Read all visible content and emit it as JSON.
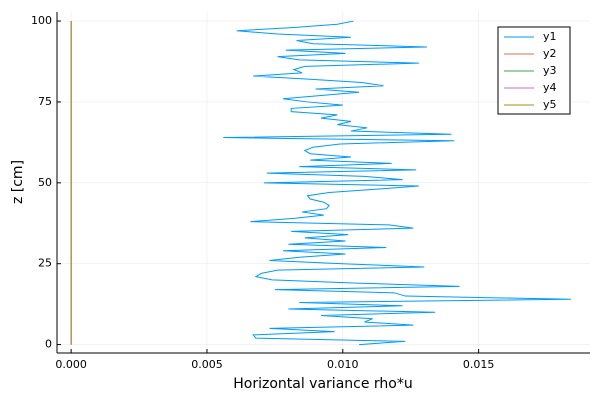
{
  "chart_data": {
    "type": "line",
    "xlabel": "Horizontal variance rho*u",
    "ylabel": "z [cm]",
    "y": [
      0,
      1,
      2,
      3,
      4,
      5,
      6,
      7,
      8,
      9,
      10,
      11,
      12,
      13,
      14,
      15,
      16,
      17,
      18,
      19,
      20,
      21,
      22,
      23,
      24,
      25,
      26,
      27,
      28,
      29,
      30,
      31,
      32,
      33,
      34,
      35,
      36,
      37,
      38,
      39,
      40,
      41,
      42,
      43,
      44,
      45,
      46,
      47,
      48,
      49,
      50,
      51,
      52,
      53,
      54,
      55,
      56,
      57,
      58,
      59,
      60,
      61,
      62,
      63,
      64,
      65,
      66,
      67,
      68,
      69,
      70,
      71,
      72,
      73,
      74,
      75,
      76,
      77,
      78,
      79,
      80,
      81,
      82,
      83,
      84,
      85,
      86,
      87,
      88,
      89,
      90,
      91,
      92,
      93,
      94,
      95,
      96,
      97,
      98,
      99,
      100
    ],
    "series": [
      {
        "name": "y1",
        "color": "#009af9",
        "values": [
          0.0106,
          0.0123,
          0.0068,
          0.0067,
          0.0097,
          0.0073,
          0.0126,
          0.0108,
          0.0111,
          0.0092,
          0.0134,
          0.008,
          0.0122,
          0.0084,
          0.0184,
          0.0123,
          0.0119,
          0.0075,
          0.0143,
          0.0105,
          0.0074,
          0.0068,
          0.007,
          0.0076,
          0.013,
          0.01,
          0.0073,
          0.0084,
          0.0101,
          0.0078,
          0.0116,
          0.008,
          0.0101,
          0.0086,
          0.0102,
          0.0081,
          0.0126,
          0.0117,
          0.0066,
          0.0082,
          0.0093,
          0.0085,
          0.0094,
          0.0095,
          0.0093,
          0.0088,
          0.0087,
          0.0095,
          0.0112,
          0.0128,
          0.0071,
          0.0122,
          0.0108,
          0.0072,
          0.0127,
          0.0084,
          0.0118,
          0.0088,
          0.0103,
          0.0088,
          0.0086,
          0.0089,
          0.0099,
          0.0141,
          0.0056,
          0.014,
          0.0103,
          0.0109,
          0.0098,
          0.0103,
          0.0092,
          0.0098,
          0.0081,
          0.0081,
          0.01,
          0.0087,
          0.0078,
          0.0092,
          0.0106,
          0.009,
          0.0115,
          0.0107,
          0.0088,
          0.0067,
          0.0085,
          0.0082,
          0.0086,
          0.0128,
          0.0084,
          0.0076,
          0.0101,
          0.0079,
          0.0131,
          0.0089,
          0.0083,
          0.0103,
          0.0076,
          0.0061,
          0.0082,
          0.0098,
          0.0104
        ]
      },
      {
        "name": "y2",
        "color": "#e26f46",
        "values": [
          0,
          0,
          0,
          0,
          0,
          0,
          0,
          0,
          0,
          0,
          0,
          0,
          0,
          0,
          0,
          0,
          0,
          0,
          0,
          0,
          0,
          0,
          0,
          0,
          0,
          0,
          0,
          0,
          0,
          0,
          0,
          0,
          0,
          0,
          0,
          0,
          0,
          0,
          0,
          0,
          0,
          0,
          0,
          0,
          0,
          0,
          0,
          0,
          0,
          0,
          0,
          0,
          0,
          0,
          0,
          0,
          0,
          0,
          0,
          0,
          0,
          0,
          0,
          0,
          0,
          0,
          0,
          0,
          0,
          0,
          0,
          0,
          0,
          0,
          0,
          0,
          0,
          0,
          0,
          0,
          0,
          0,
          0,
          0,
          0,
          0,
          0,
          0,
          0,
          0,
          0,
          0,
          0,
          0,
          0,
          0,
          0,
          0,
          0,
          0,
          0
        ]
      },
      {
        "name": "y3",
        "color": "#3da44d",
        "values": [
          0,
          0,
          0,
          0,
          0,
          0,
          0,
          0,
          0,
          0,
          0,
          0,
          0,
          0,
          0,
          0,
          0,
          0,
          0,
          0,
          0,
          0,
          0,
          0,
          0,
          0,
          0,
          0,
          0,
          0,
          0,
          0,
          0,
          0,
          0,
          0,
          0,
          0,
          0,
          0,
          0,
          0,
          0,
          0,
          0,
          0,
          0,
          0,
          0,
          0,
          0,
          0,
          0,
          0,
          0,
          0,
          0,
          0,
          0,
          0,
          0,
          0,
          0,
          0,
          0,
          0,
          0,
          0,
          0,
          0,
          0,
          0,
          0,
          0,
          0,
          0,
          0,
          0,
          0,
          0,
          0,
          0,
          0,
          0,
          0,
          0,
          0,
          0,
          0,
          0,
          0,
          0,
          0,
          0,
          0,
          0,
          0,
          0,
          0,
          0,
          0
        ]
      },
      {
        "name": "y4",
        "color": "#c271d2",
        "values": [
          0,
          0,
          0,
          0,
          0,
          0,
          0,
          0,
          0,
          0,
          0,
          0,
          0,
          0,
          0,
          0,
          0,
          0,
          0,
          0,
          0,
          0,
          0,
          0,
          0,
          0,
          0,
          0,
          0,
          0,
          0,
          0,
          0,
          0,
          0,
          0,
          0,
          0,
          0,
          0,
          0,
          0,
          0,
          0,
          0,
          0,
          0,
          0,
          0,
          0,
          0,
          0,
          0,
          0,
          0,
          0,
          0,
          0,
          0,
          0,
          0,
          0,
          0,
          0,
          0,
          0,
          0,
          0,
          0,
          0,
          0,
          0,
          0,
          0,
          0,
          0,
          0,
          0,
          0,
          0,
          0,
          0,
          0,
          0,
          0,
          0,
          0,
          0,
          0,
          0,
          0,
          0,
          0,
          0,
          0,
          0,
          0,
          0,
          0,
          0,
          0
        ]
      },
      {
        "name": "y5",
        "color": "#ac8d18",
        "values": [
          0,
          0,
          0,
          0,
          0,
          0,
          0,
          0,
          0,
          0,
          0,
          0,
          0,
          0,
          0,
          0,
          0,
          0,
          0,
          0,
          0,
          0,
          0,
          0,
          0,
          0,
          0,
          0,
          0,
          0,
          0,
          0,
          0,
          0,
          0,
          0,
          0,
          0,
          0,
          0,
          0,
          0,
          0,
          0,
          0,
          0,
          0,
          0,
          0,
          0,
          0,
          0,
          0,
          0,
          0,
          0,
          0,
          0,
          0,
          0,
          0,
          0,
          0,
          0,
          0,
          0,
          0,
          0,
          0,
          0,
          0,
          0,
          0,
          0,
          0,
          0,
          0,
          0,
          0,
          0,
          0,
          0,
          0,
          0,
          0,
          0,
          0,
          0,
          0,
          0,
          0,
          0,
          0,
          0,
          0,
          0,
          0,
          0,
          0,
          0,
          0
        ]
      }
    ],
    "xlim": [
      -0.00052,
      0.0191
    ],
    "ylim": [
      -2.6,
      102.8
    ],
    "xticks": [
      {
        "value": 0,
        "label": "0.000"
      },
      0.005,
      {
        "value": 0.01,
        "label": "0.010"
      },
      0.015
    ],
    "yticks": [
      0,
      25,
      50,
      75,
      100
    ],
    "grid": true,
    "legend": "top-right"
  }
}
